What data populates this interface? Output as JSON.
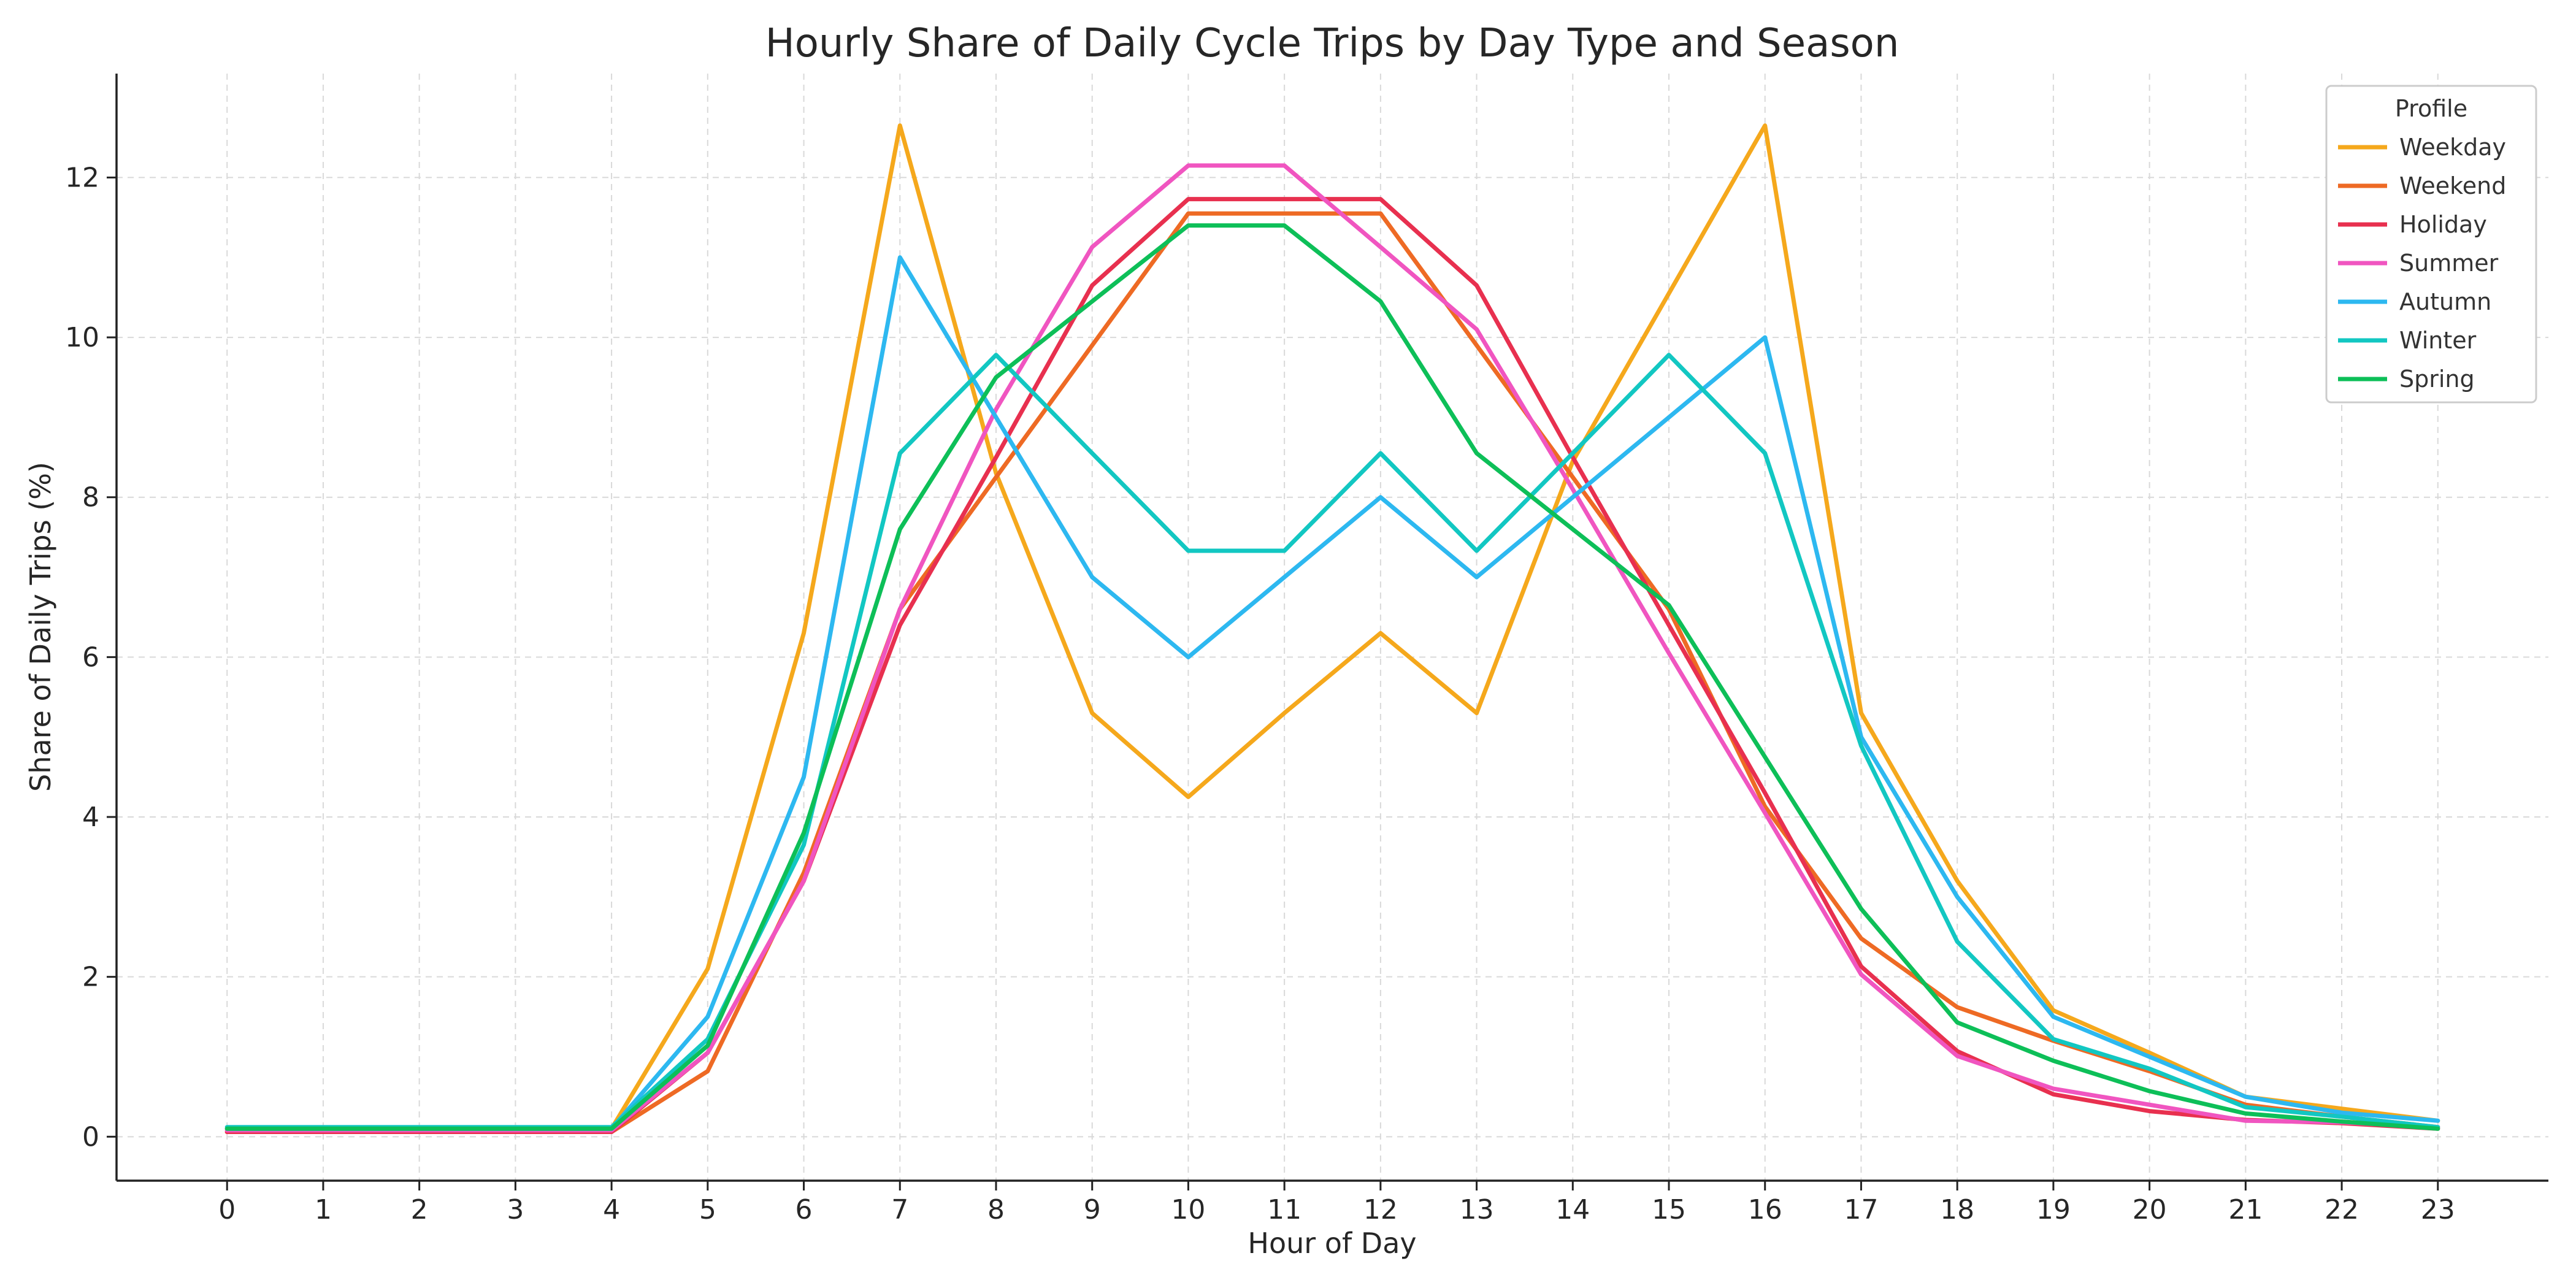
{
  "chart_data": {
    "type": "line",
    "title": "Hourly Share of Daily Cycle Trips by Day Type and Season",
    "xlabel": "Hour of Day",
    "ylabel": "Share of Daily Trips (%)",
    "x": [
      0,
      1,
      2,
      3,
      4,
      5,
      6,
      7,
      8,
      9,
      10,
      11,
      12,
      13,
      14,
      15,
      16,
      17,
      18,
      19,
      20,
      21,
      22,
      23
    ],
    "xlim": [
      -1.15,
      24.15
    ],
    "ylim": [
      -0.55,
      13.3
    ],
    "yticks": [
      0,
      2,
      4,
      6,
      8,
      10,
      12
    ],
    "grid": true,
    "legend": {
      "title": "Profile",
      "placement": "top-right"
    },
    "series": [
      {
        "name": "Weekday",
        "color": "#F5A81C",
        "values": [
          0.1,
          0.1,
          0.1,
          0.1,
          0.1,
          2.1,
          6.3,
          12.65,
          8.3,
          5.3,
          4.25,
          5.3,
          6.3,
          5.3,
          8.45,
          10.55,
          12.65,
          5.3,
          3.2,
          1.58,
          1.05,
          0.5,
          0.35,
          0.2
        ]
      },
      {
        "name": "Weekend",
        "color": "#EE6A24",
        "values": [
          0.06,
          0.06,
          0.06,
          0.06,
          0.06,
          0.82,
          3.3,
          6.6,
          8.25,
          9.9,
          11.55,
          11.55,
          11.55,
          9.9,
          8.25,
          6.6,
          4.13,
          2.48,
          1.62,
          1.2,
          0.82,
          0.4,
          0.25,
          0.12
        ]
      },
      {
        "name": "Holiday",
        "color": "#E8304F",
        "values": [
          0.06,
          0.06,
          0.06,
          0.06,
          0.06,
          1.05,
          3.2,
          6.4,
          8.5,
          10.65,
          11.73,
          11.73,
          11.73,
          10.65,
          8.5,
          6.4,
          4.3,
          2.13,
          1.07,
          0.53,
          0.32,
          0.21,
          0.17,
          0.1
        ]
      },
      {
        "name": "Summer",
        "color": "#F055C0",
        "values": [
          0.08,
          0.08,
          0.08,
          0.08,
          0.08,
          1.05,
          3.2,
          6.6,
          9.1,
          11.13,
          12.15,
          12.15,
          11.13,
          10.1,
          8.1,
          6.05,
          4.05,
          2.03,
          1.01,
          0.6,
          0.4,
          0.2,
          0.18,
          0.12
        ]
      },
      {
        "name": "Autumn",
        "color": "#2DB8F0",
        "values": [
          0.1,
          0.1,
          0.1,
          0.1,
          0.1,
          1.5,
          4.5,
          11.0,
          9.0,
          7.0,
          6.0,
          7.0,
          8.0,
          7.0,
          8.0,
          9.0,
          10.0,
          5.0,
          3.0,
          1.5,
          1.0,
          0.5,
          0.3,
          0.2
        ]
      },
      {
        "name": "Winter",
        "color": "#12C7C2",
        "values": [
          0.12,
          0.12,
          0.12,
          0.12,
          0.12,
          1.22,
          3.65,
          8.55,
          9.78,
          8.55,
          7.33,
          7.33,
          8.55,
          7.33,
          8.55,
          9.78,
          8.55,
          4.89,
          2.44,
          1.22,
          0.85,
          0.37,
          0.25,
          0.12
        ]
      },
      {
        "name": "Spring",
        "color": "#0DBF58",
        "values": [
          0.1,
          0.1,
          0.1,
          0.1,
          0.1,
          1.14,
          3.8,
          7.6,
          9.5,
          10.45,
          11.4,
          11.4,
          10.45,
          8.55,
          7.6,
          6.65,
          4.75,
          2.85,
          1.43,
          0.95,
          0.57,
          0.29,
          0.19,
          0.1
        ]
      }
    ]
  }
}
